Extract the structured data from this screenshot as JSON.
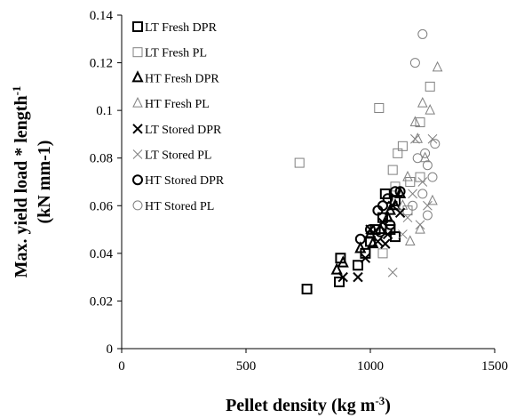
{
  "chart_data": {
    "type": "scatter",
    "xlabel": [
      "Pellet density (kg m",
      "-3",
      ")"
    ],
    "ylabel": [
      [
        "Max. yield load * length",
        "-1"
      ],
      [
        "(kN mm-1)"
      ]
    ],
    "xlim": [
      0,
      1500
    ],
    "xticks": [
      0,
      500,
      1000,
      1500
    ],
    "ylim": [
      0,
      0.14
    ],
    "yticks": [
      0,
      0.02,
      0.04,
      0.06,
      0.08,
      0.1,
      0.12,
      0.14
    ],
    "legend": "upper left",
    "series": [
      {
        "name": "LT Fresh DPR",
        "color": "#000000",
        "marker": "square",
        "x": [
          745,
          875,
          880,
          950,
          980,
          1000,
          1020,
          1050,
          1080,
          1100,
          1060,
          1100
        ],
        "values": [
          0.025,
          0.028,
          0.038,
          0.035,
          0.04,
          0.045,
          0.05,
          0.055,
          0.05,
          0.047,
          0.065,
          0.062
        ]
      },
      {
        "name": "LT Fresh PL",
        "color": "#808080",
        "marker": "square",
        "x": [
          715,
          1035,
          1240,
          1200,
          1110,
          1090,
          1150,
          1130,
          1160,
          1200,
          1100,
          1050
        ],
        "values": [
          0.078,
          0.101,
          0.11,
          0.095,
          0.082,
          0.075,
          0.058,
          0.085,
          0.07,
          0.072,
          0.068,
          0.04
        ]
      },
      {
        "name": "HT Fresh DPR",
        "color": "#000000",
        "marker": "triangle",
        "x": [
          865,
          890,
          960,
          1000,
          1040,
          1070,
          1100,
          1120,
          1080,
          1010
        ],
        "values": [
          0.033,
          0.036,
          0.042,
          0.048,
          0.05,
          0.055,
          0.06,
          0.065,
          0.058,
          0.044
        ]
      },
      {
        "name": "HT Fresh PL",
        "color": "#808080",
        "marker": "triangle",
        "x": [
          1270,
          1210,
          1240,
          1180,
          1190,
          1220,
          1150,
          1160,
          1250,
          1200,
          1130
        ],
        "values": [
          0.118,
          0.103,
          0.1,
          0.095,
          0.088,
          0.08,
          0.072,
          0.045,
          0.062,
          0.05,
          0.06
        ]
      },
      {
        "name": "LT Stored DPR",
        "color": "#000000",
        "marker": "x",
        "x": [
          890,
          950,
          980,
          1000,
          1030,
          1050,
          1070,
          1090,
          1120,
          1060
        ],
        "values": [
          0.03,
          0.03,
          0.038,
          0.05,
          0.045,
          0.053,
          0.048,
          0.06,
          0.057,
          0.044
        ]
      },
      {
        "name": "LT Stored PL",
        "color": "#808080",
        "marker": "x",
        "x": [
          1090,
          1180,
          1250,
          1210,
          1170,
          1230,
          1150,
          1200,
          1130
        ],
        "values": [
          0.032,
          0.088,
          0.088,
          0.07,
          0.065,
          0.06,
          0.055,
          0.052,
          0.048
        ]
      },
      {
        "name": "HT Stored DPR",
        "color": "#000000",
        "marker": "circle",
        "x": [
          960,
          1000,
          1030,
          1050,
          1070,
          1100,
          1120,
          1080,
          1040
        ],
        "values": [
          0.046,
          0.05,
          0.058,
          0.06,
          0.063,
          0.066,
          0.066,
          0.052,
          0.049
        ]
      },
      {
        "name": "HT Stored PL",
        "color": "#808080",
        "marker": "circle",
        "x": [
          1210,
          1180,
          1220,
          1250,
          1230,
          1190,
          1210,
          1230,
          1260,
          1170
        ],
        "values": [
          0.132,
          0.12,
          0.082,
          0.072,
          0.077,
          0.08,
          0.065,
          0.056,
          0.086,
          0.06
        ]
      }
    ]
  }
}
